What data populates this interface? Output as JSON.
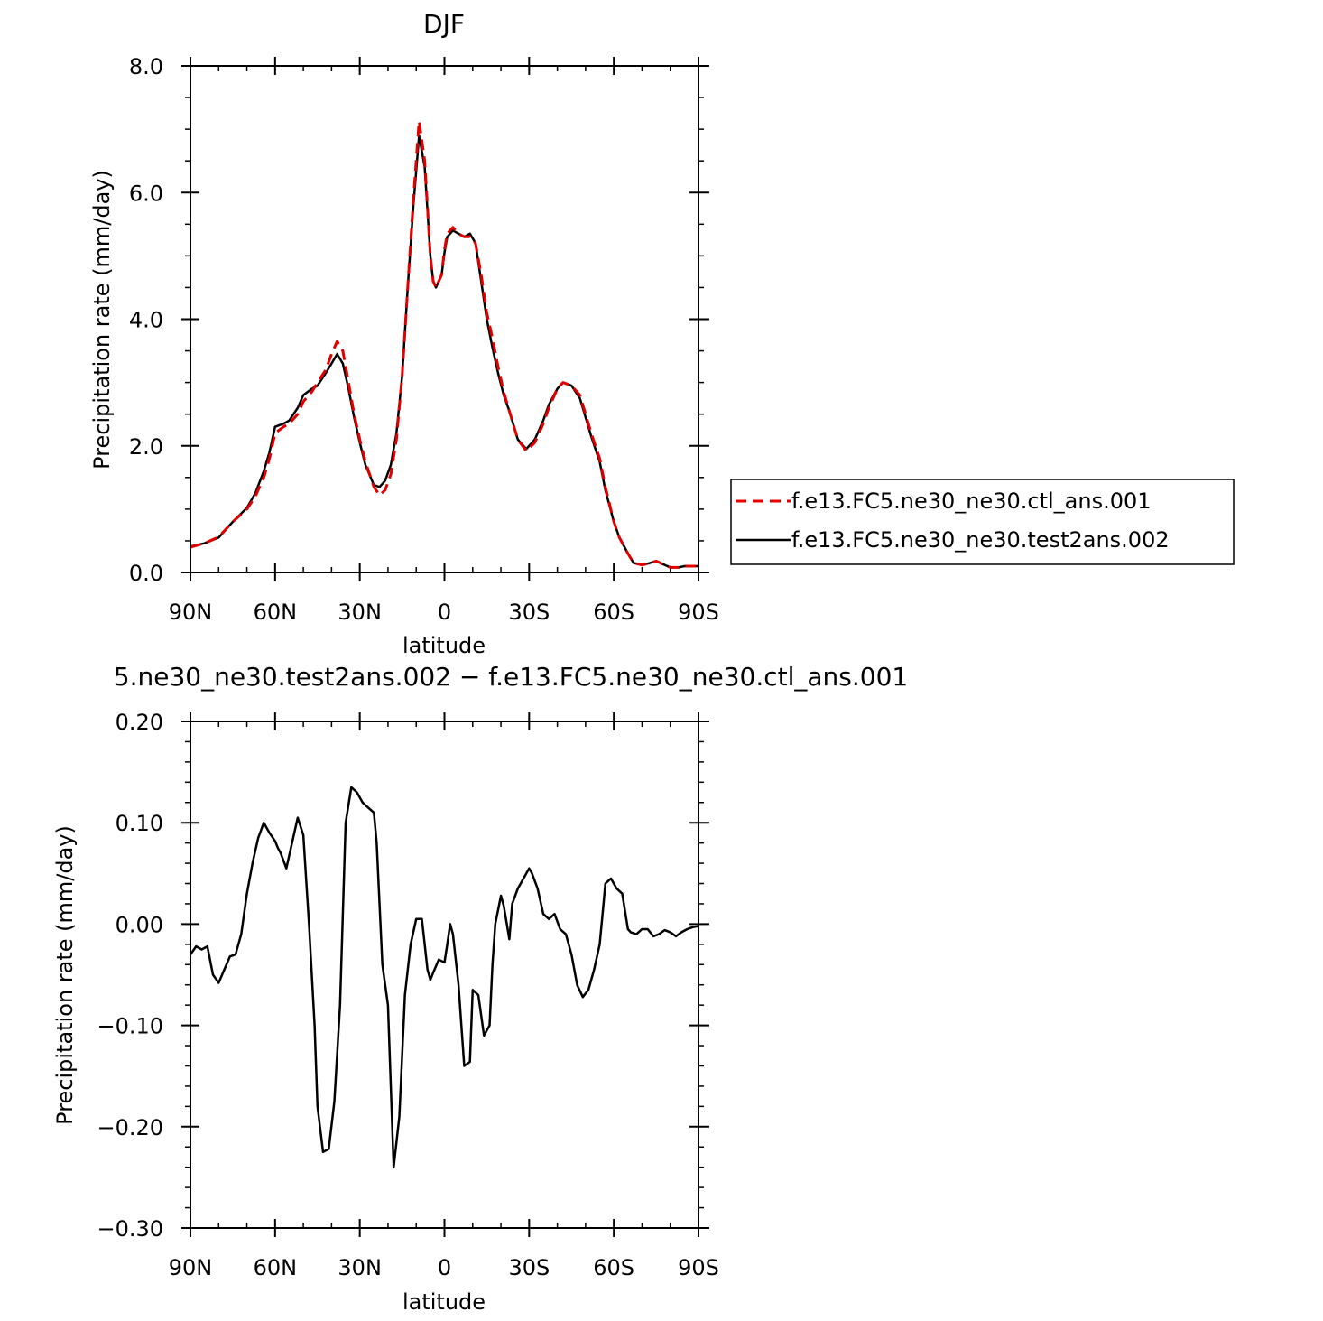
{
  "chart_data": [
    {
      "type": "line",
      "title": "DJF",
      "xlabel": "latitude",
      "ylabel": "Precipitation rate (mm/day)",
      "xlim": [
        90,
        -90
      ],
      "ylim": [
        0,
        8
      ],
      "x_ticks": [
        90,
        60,
        30,
        0,
        -30,
        -60,
        -90
      ],
      "x_tick_labels": [
        "90N",
        "60N",
        "30N",
        "0",
        "30S",
        "60S",
        "90S"
      ],
      "y_ticks": [
        0,
        2,
        4,
        6,
        8
      ],
      "y_tick_labels": [
        "0.0",
        "2.0",
        "4.0",
        "6.0",
        "8.0"
      ],
      "legend_position": "right",
      "series": [
        {
          "name": "f.e13.FC5.ne30_ne30.ctl_ans.001",
          "color": "#e00000",
          "dash": "dashed",
          "x": [
            90,
            85,
            80,
            75,
            70,
            67,
            64,
            62,
            60,
            57,
            55,
            52,
            50,
            47,
            45,
            42,
            40,
            38,
            36,
            34,
            32,
            30,
            28,
            25,
            23,
            21,
            19,
            17,
            15,
            13,
            11,
            9,
            7,
            5,
            4,
            3,
            1,
            0,
            -1,
            -3,
            -5,
            -7,
            -9,
            -11,
            -13,
            -15,
            -17,
            -19,
            -21,
            -23,
            -26,
            -29,
            -32,
            -35,
            -37,
            -40,
            -42,
            -45,
            -48,
            -50,
            -52,
            -55,
            -57,
            -60,
            -62,
            -65,
            -67,
            -70,
            -72,
            -75,
            -78,
            -80,
            -83,
            -85,
            -88,
            -90
          ],
          "y": [
            0.4,
            0.46,
            0.56,
            0.8,
            1.0,
            1.2,
            1.5,
            1.8,
            2.2,
            2.3,
            2.35,
            2.5,
            2.7,
            2.85,
            3.0,
            3.2,
            3.45,
            3.65,
            3.5,
            3.0,
            2.5,
            2.1,
            1.75,
            1.35,
            1.22,
            1.3,
            1.55,
            2.1,
            3.1,
            4.5,
            5.9,
            7.13,
            6.5,
            5.0,
            4.6,
            4.5,
            4.7,
            5.1,
            5.35,
            5.45,
            5.35,
            5.3,
            5.3,
            5.2,
            4.7,
            4.1,
            3.7,
            3.25,
            2.85,
            2.55,
            2.1,
            1.92,
            2.05,
            2.35,
            2.6,
            2.9,
            3.0,
            2.95,
            2.8,
            2.5,
            2.2,
            1.8,
            1.35,
            0.8,
            0.55,
            0.3,
            0.15,
            0.12,
            0.14,
            0.18,
            0.12,
            0.08,
            0.08,
            0.1,
            0.1,
            0.1
          ]
        },
        {
          "name": "f.e13.FC5.ne30_ne30.test2ans.002",
          "color": "#000000",
          "dash": "solid",
          "x": [
            90,
            85,
            80,
            75,
            70,
            67,
            64,
            62,
            60,
            57,
            55,
            52,
            50,
            47,
            45,
            42,
            40,
            38,
            36,
            34,
            32,
            30,
            28,
            25,
            23,
            21,
            19,
            17,
            15,
            13,
            11,
            9,
            7,
            5,
            4,
            3,
            1,
            0,
            -1,
            -3,
            -5,
            -7,
            -9,
            -11,
            -13,
            -15,
            -17,
            -19,
            -21,
            -23,
            -26,
            -29,
            -32,
            -35,
            -37,
            -40,
            -42,
            -45,
            -48,
            -50,
            -52,
            -55,
            -57,
            -60,
            -62,
            -65,
            -67,
            -70,
            -72,
            -75,
            -78,
            -80,
            -83,
            -85,
            -88,
            -90
          ],
          "y": [
            0.41,
            0.46,
            0.55,
            0.8,
            1.02,
            1.25,
            1.6,
            1.9,
            2.3,
            2.35,
            2.4,
            2.6,
            2.8,
            2.9,
            2.95,
            3.15,
            3.3,
            3.45,
            3.3,
            2.9,
            2.45,
            2.05,
            1.7,
            1.38,
            1.35,
            1.45,
            1.7,
            2.2,
            3.1,
            4.5,
            5.8,
            6.9,
            6.4,
            5.0,
            4.6,
            4.5,
            4.7,
            5.05,
            5.3,
            5.4,
            5.35,
            5.3,
            5.35,
            5.2,
            4.6,
            4.0,
            3.55,
            3.15,
            2.8,
            2.55,
            2.1,
            1.95,
            2.1,
            2.4,
            2.65,
            2.9,
            3.0,
            2.95,
            2.75,
            2.45,
            2.15,
            1.75,
            1.3,
            0.8,
            0.55,
            0.3,
            0.15,
            0.12,
            0.14,
            0.18,
            0.12,
            0.08,
            0.08,
            0.1,
            0.1,
            0.1
          ]
        }
      ]
    },
    {
      "type": "line",
      "title": "5.ne30_ne30.test2ans.002 − f.e13.FC5.ne30_ne30.ctl_ans.001",
      "xlabel": "latitude",
      "ylabel": "Precipitation rate (mm/day)",
      "xlim": [
        90,
        -90
      ],
      "ylim": [
        -0.3,
        0.2
      ],
      "x_ticks": [
        90,
        60,
        30,
        0,
        -30,
        -60,
        -90
      ],
      "x_tick_labels": [
        "90N",
        "60N",
        "30N",
        "0",
        "30S",
        "60S",
        "90S"
      ],
      "y_ticks": [
        -0.3,
        -0.2,
        -0.1,
        0,
        0.1,
        0.2
      ],
      "y_tick_labels": [
        "−0.30",
        "−0.20",
        "−0.10",
        "0.00",
        "0.10",
        "0.20"
      ],
      "series": [
        {
          "color": "#000000",
          "dash": "solid",
          "x": [
            90,
            88,
            86,
            84,
            82,
            80,
            78,
            76,
            74,
            72,
            70,
            68,
            66,
            64,
            62,
            60,
            59,
            58,
            56,
            54,
            52,
            50,
            48,
            46,
            45,
            43,
            41,
            39,
            37,
            36,
            35,
            33,
            31,
            29,
            27,
            25,
            24,
            22,
            20,
            18,
            16,
            14,
            12,
            10,
            8,
            6,
            5,
            4,
            2,
            0,
            -1,
            -2,
            -3,
            -5,
            -7,
            -9,
            -10,
            -12,
            -14,
            -16,
            -17,
            -18,
            -20,
            -21,
            -23,
            -24,
            -26,
            -28,
            -30,
            -31,
            -33,
            -35,
            -37,
            -39,
            -41,
            -43,
            -45,
            -47,
            -49,
            -51,
            -53,
            -55,
            -56,
            -57,
            -59,
            -61,
            -63,
            -65,
            -66,
            -68,
            -70,
            -72,
            -74,
            -76,
            -78,
            -80,
            -82,
            -84,
            -86,
            -88,
            -90
          ],
          "y": [
            -0.03,
            -0.022,
            -0.025,
            -0.022,
            -0.05,
            -0.058,
            -0.045,
            -0.032,
            -0.03,
            -0.01,
            0.03,
            0.06,
            0.085,
            0.1,
            0.09,
            0.082,
            0.075,
            0.07,
            0.055,
            0.08,
            0.105,
            0.088,
            0.0,
            -0.1,
            -0.18,
            -0.225,
            -0.222,
            -0.175,
            -0.08,
            0.01,
            0.1,
            0.135,
            0.13,
            0.12,
            0.115,
            0.11,
            0.08,
            -0.04,
            -0.08,
            -0.24,
            -0.19,
            -0.07,
            -0.02,
            0.005,
            0.005,
            -0.045,
            -0.055,
            -0.048,
            -0.035,
            -0.038,
            -0.02,
            0.0,
            -0.01,
            -0.06,
            -0.14,
            -0.136,
            -0.065,
            -0.07,
            -0.11,
            -0.1,
            -0.04,
            0.0,
            0.028,
            0.018,
            -0.015,
            0.02,
            0.035,
            0.045,
            0.055,
            0.05,
            0.035,
            0.01,
            0.005,
            0.01,
            -0.005,
            -0.01,
            -0.03,
            -0.06,
            -0.072,
            -0.065,
            -0.045,
            -0.02,
            0.01,
            0.04,
            0.045,
            0.035,
            0.03,
            -0.005,
            -0.008,
            -0.01,
            -0.005,
            -0.005,
            -0.012,
            -0.01,
            -0.006,
            -0.008,
            -0.012,
            -0.008,
            -0.005,
            -0.003,
            -0.002
          ]
        }
      ]
    }
  ]
}
